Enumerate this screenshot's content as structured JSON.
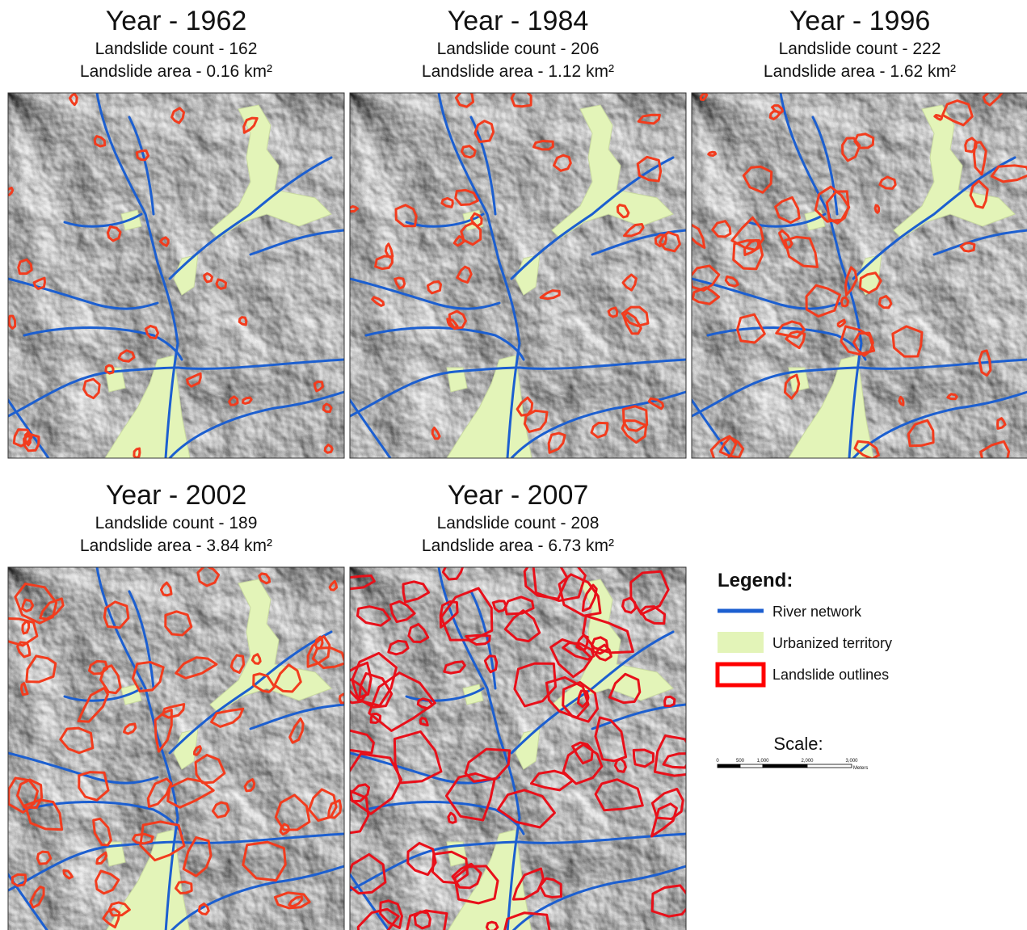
{
  "panels": [
    {
      "title": "Year - 1962",
      "count": "Landslide count - 162",
      "area": "Landslide area - 0.16 km²"
    },
    {
      "title": "Year - 1984",
      "count": "Landslide count - 206",
      "area": "Landslide area - 1.12 km²"
    },
    {
      "title": "Year - 1996",
      "count": "Landslide count - 222",
      "area": "Landslide area - 1.62 km²"
    },
    {
      "title": "Year - 2002",
      "count": "Landslide count - 189",
      "area": "Landslide area - 3.84 km²"
    },
    {
      "title": "Year - 2007",
      "count": "Landslide count - 208",
      "area": "Landslide area - 6.73 km²"
    }
  ],
  "legend": {
    "title": "Legend:",
    "items": [
      "River network",
      "Urbanized territory",
      "Landslide outlines"
    ]
  },
  "scale": {
    "title": "Scale:",
    "labels": [
      "0",
      "500",
      "1,000",
      "2,000",
      "3,000"
    ],
    "unit": "Meters"
  }
}
